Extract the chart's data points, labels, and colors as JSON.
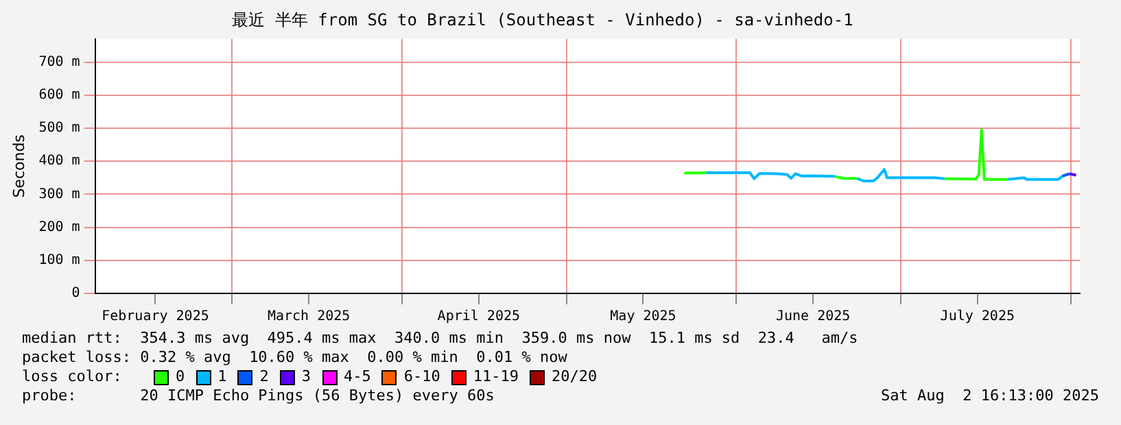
{
  "chart_data": {
    "type": "line",
    "title": "最近 半年 from SG to Brazil (Southeast - Vinhedo) - sa-vinhedo-1",
    "ylabel": "Seconds",
    "legend_title": "loss color:",
    "legend": "bottom",
    "grid": true,
    "marker": "none",
    "line_style": "solid",
    "xlim": [
      "2025-02-04",
      "2025-08-02T16:13"
    ],
    "xticks": [
      {
        "value": "2025-02-15",
        "label": "February 2025"
      },
      {
        "value": "2025-03-01",
        "label": null
      },
      {
        "value": "2025-03-15",
        "label": "March 2025"
      },
      {
        "value": "2025-04-01",
        "label": null
      },
      {
        "value": "2025-04-15",
        "label": "April 2025"
      },
      {
        "value": "2025-05-01",
        "label": null
      },
      {
        "value": "2025-05-15",
        "label": "May 2025"
      },
      {
        "value": "2025-06-01",
        "label": null
      },
      {
        "value": "2025-06-15",
        "label": "June 2025"
      },
      {
        "value": "2025-07-01",
        "label": null
      },
      {
        "value": "2025-07-15",
        "label": "July 2025"
      },
      {
        "value": "2025-08-01",
        "label": null
      }
    ],
    "ylim": [
      0,
      770
    ],
    "yticks": [
      0,
      {
        "value": 100,
        "label": "100 m"
      },
      {
        "value": 200,
        "label": "200 m"
      },
      {
        "value": 300,
        "label": "300 m"
      },
      {
        "value": 400,
        "label": "400 m"
      },
      {
        "value": 500,
        "label": "500 m"
      },
      {
        "value": 600,
        "label": "600 m"
      },
      {
        "value": 700,
        "label": "700 m"
      }
    ],
    "series": [
      {
        "name": "0",
        "color": "#26ff00",
        "x": [
          "2025-05-22T12:00",
          "2025-05-26T12:00",
          "2025-05-29",
          "2025-06-19",
          "2025-06-20T12:00",
          "2025-06-23",
          "2025-07-08",
          "2025-07-09",
          "2025-07-14T18:00",
          "2025-07-15T06:00",
          "2025-07-15T18:00",
          "2025-07-16T06:00",
          "2025-07-20T12:00"
        ],
        "values": [
          364,
          365,
          null,
          354,
          348,
          348,
          null,
          347,
          346,
          360,
          495,
          345,
          345
        ]
      },
      {
        "name": "1",
        "color": "#00b8ff",
        "x": [
          "2025-05-26T12:00",
          "2025-05-31T12:00",
          "2025-06-03T12:00",
          "2025-06-04T06:00",
          "2025-06-05T06:00",
          "2025-06-08T12:00",
          "2025-06-10T06:00",
          "2025-06-11",
          "2025-06-11T18:00",
          "2025-06-13",
          "2025-06-14T18:00",
          "2025-06-19",
          "2025-06-21",
          "2025-06-23",
          "2025-06-24T06:00",
          "2025-06-26",
          "2025-06-26T18:00",
          "2025-06-28",
          "2025-06-28T12:00",
          "2025-06-30T12:00",
          "2025-07-07T06:00",
          "2025-07-09",
          "2025-07-18",
          "2025-07-20T12:00",
          "2025-07-23T12:00",
          "2025-07-24",
          "2025-07-29T18:00",
          "2025-07-30T12:00"
        ],
        "values": [
          365,
          365,
          365,
          347,
          363,
          362,
          360,
          348,
          362,
          355,
          356,
          354,
          null,
          348,
          340,
          340,
          350,
          375,
          350,
          350,
          350,
          347,
          null,
          345,
          350,
          345,
          345,
          355
        ]
      },
      {
        "name": "2",
        "color": "#0059ff",
        "x": [
          "2025-07-30T12:00",
          "2025-07-31T18:00"
        ],
        "values": [
          355,
          362
        ]
      },
      {
        "name": "3",
        "color": "#5e00ff",
        "x": [
          "2025-07-31T18:00",
          "2025-08-02"
        ],
        "values": [
          362,
          358
        ]
      },
      {
        "name": "4-5",
        "color": "#ff00fe"
      },
      {
        "name": "6-10",
        "color": "#ff5e00"
      },
      {
        "name": "11-19",
        "color": "#ff0000"
      },
      {
        "name": "20/20",
        "color": "#a10000"
      }
    ],
    "annotations": [
      "median rtt:  354.3 ms avg  495.4 ms max  340.0 ms min  359.0 ms now  15.1 ms sd  23.4   am/s",
      "packet loss: 0.32 % avg  10.60 % max  0.00 % min  0.01 % now",
      "probe:       20 ICMP Echo Pings (56 Bytes) every 60s",
      "Sat Aug  2 16:13:00 2025"
    ]
  }
}
